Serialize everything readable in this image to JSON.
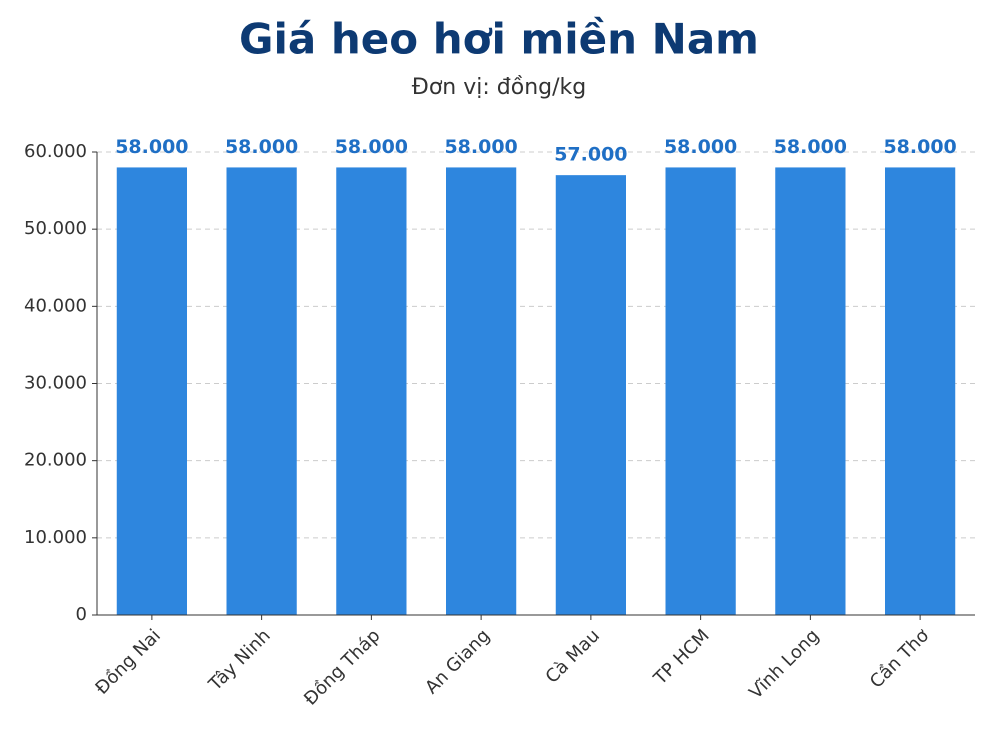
{
  "chart_data": {
    "type": "bar",
    "title": "Giá heo hơi miền Nam",
    "subtitle": "Đơn vị: đồng/kg",
    "categories": [
      "Đồng Nai",
      "Tây Ninh",
      "Đồng Tháp",
      "An Giang",
      "Cà Mau",
      "TP HCM",
      "Vĩnh Long",
      "Cần Thơ"
    ],
    "values": [
      58000,
      58000,
      58000,
      58000,
      57000,
      58000,
      58000,
      58000
    ],
    "value_labels": [
      "58.000",
      "58.000",
      "58.000",
      "58.000",
      "57.000",
      "58.000",
      "58.000",
      "58.000"
    ],
    "color": "#2e86de",
    "ylim": [
      0,
      60000
    ],
    "yticks": [
      0,
      {
        "value": 10000,
        "label": "10.000"
      },
      {
        "value": 20000,
        "label": "20.000"
      },
      {
        "value": 30000,
        "label": "30.000"
      },
      {
        "value": 40000,
        "label": "40.000"
      },
      {
        "value": 50000,
        "label": "50.000"
      },
      {
        "value": 60000,
        "label": "60.000"
      }
    ],
    "grid": true
  }
}
